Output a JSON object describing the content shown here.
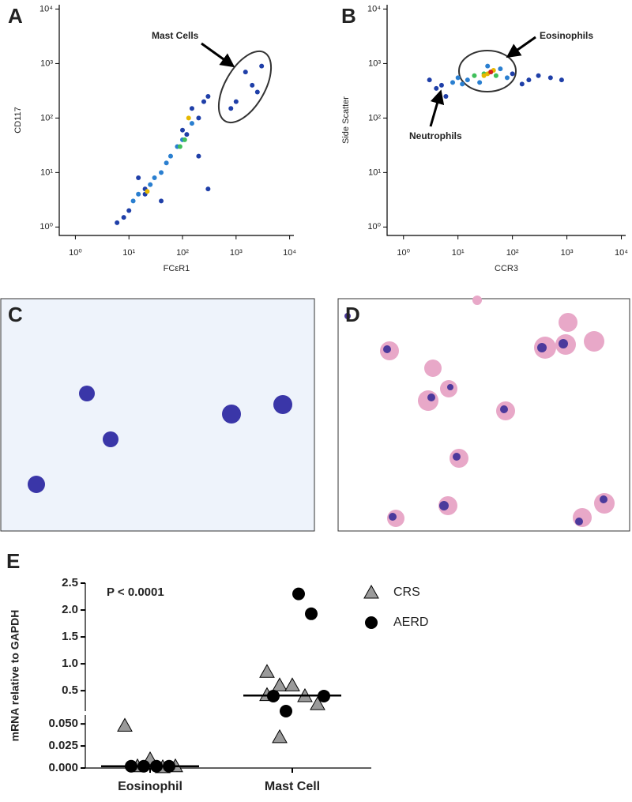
{
  "chart_data": [
    {
      "type": "scatter",
      "panel": "A",
      "xlabel": "FCεR1",
      "ylabel": "CD117",
      "xlog": true,
      "ylog": true,
      "xlim": [
        0.5,
        12000
      ],
      "ylim": [
        0.7,
        12000
      ],
      "xticks": [
        {
          "value": 1,
          "label": "10⁰"
        },
        {
          "value": 10,
          "label": "10¹"
        },
        {
          "value": 100,
          "label": "10²"
        },
        {
          "value": 1000,
          "label": "10³"
        },
        {
          "value": 10000,
          "label": "10⁴"
        }
      ],
      "yticks": [
        {
          "value": 1,
          "label": "10⁰"
        },
        {
          "value": 10,
          "label": "10¹"
        },
        {
          "value": 100,
          "label": "10²"
        },
        {
          "value": 1000,
          "label": "10³"
        },
        {
          "value": 10000,
          "label": "10⁴"
        }
      ],
      "annotation": "Mast Cells",
      "x": [
        6,
        8,
        10,
        12,
        15,
        20,
        25,
        20,
        30,
        40,
        50,
        60,
        80,
        100,
        120,
        150,
        100,
        200,
        150,
        250,
        300,
        200,
        300,
        1000,
        2000,
        1500,
        3000,
        800,
        2500,
        40,
        15,
        22,
        110,
        130,
        90
      ],
      "y": [
        1.2,
        1.5,
        2,
        3,
        4,
        5,
        6,
        4,
        8,
        10,
        15,
        20,
        30,
        40,
        50,
        80,
        60,
        100,
        150,
        200,
        250,
        20,
        5,
        200,
        400,
        700,
        900,
        150,
        300,
        3,
        8,
        4.5,
        40,
        100,
        30
      ],
      "colors": [
        "#1f3fa8",
        "#1f3fa8",
        "#1f3fa8",
        "#2a7fd0",
        "#2a7fd0",
        "#1f3fa8",
        "#2a7fd0",
        "#1f3fa8",
        "#2a7fd0",
        "#2a7fd0",
        "#2a7fd0",
        "#2a7fd0",
        "#2a7fd0",
        "#2a7fd0",
        "#1f3fa8",
        "#2a7fd0",
        "#1f3fa8",
        "#1f3fa8",
        "#1f3fa8",
        "#1f3fa8",
        "#1f3fa8",
        "#1f3fa8",
        "#1f3fa8",
        "#1f3fa8",
        "#1f3fa8",
        "#1f3fa8",
        "#1f3fa8",
        "#1f3fa8",
        "#1f3fa8",
        "#1f3fa8",
        "#1f3fa8",
        "#e6b800",
        "#3fbf5a",
        "#e6b800",
        "#3fbf5a"
      ]
    },
    {
      "type": "scatter",
      "panel": "B",
      "xlabel": "CCR3",
      "ylabel": "Side Scatter",
      "xlog": true,
      "ylog": true,
      "xlim": [
        0.5,
        12000
      ],
      "ylim": [
        0.7,
        12000
      ],
      "xticks": [
        {
          "value": 1,
          "label": "10⁰"
        },
        {
          "value": 10,
          "label": "10¹"
        },
        {
          "value": 100,
          "label": "10²"
        },
        {
          "value": 1000,
          "label": "10³"
        },
        {
          "value": 10000,
          "label": "10⁴"
        }
      ],
      "yticks": [
        {
          "value": 1,
          "label": "10⁰"
        },
        {
          "value": 10,
          "label": "10¹"
        },
        {
          "value": 100,
          "label": "10²"
        },
        {
          "value": 1000,
          "label": "10³"
        },
        {
          "value": 10000,
          "label": "10⁴"
        }
      ],
      "annotations": [
        "Eosinophils",
        "Neutrophils"
      ],
      "x": [
        3,
        5,
        8,
        10,
        15,
        20,
        30,
        40,
        50,
        60,
        80,
        100,
        200,
        300,
        500,
        800,
        6,
        25,
        35,
        45,
        35,
        40,
        30,
        4,
        12,
        150
      ],
      "y": [
        500,
        400,
        450,
        550,
        500,
        600,
        650,
        700,
        600,
        800,
        550,
        650,
        500,
        600,
        550,
        500,
        250,
        450,
        900,
        750,
        650,
        700,
        600,
        350,
        420,
        420
      ],
      "colors": [
        "#1f3fa8",
        "#1f3fa8",
        "#2a7fd0",
        "#2a7fd0",
        "#2a7fd0",
        "#3fbf5a",
        "#3fbf5a",
        "#3fbf5a",
        "#3fbf5a",
        "#2a7fd0",
        "#2a7fd0",
        "#1f3fa8",
        "#1f3fa8",
        "#1f3fa8",
        "#1f3fa8",
        "#1f3fa8",
        "#1f3fa8",
        "#2a7fd0",
        "#2a7fd0",
        "#e6b800",
        "#e6b800",
        "#d62020",
        "#e6b800",
        "#1f3fa8",
        "#2a7fd0",
        "#1f3fa8"
      ]
    },
    {
      "type": "dotplot",
      "panel": "E",
      "ylabel": "mRNA relative to GAPDH",
      "annotation": "P < 0.0001",
      "categories": [
        "Eosinophil",
        "Mast Cell"
      ],
      "segments": [
        {
          "ylim": [
            0,
            0.06
          ],
          "yticks": [
            {
              "value": 0,
              "label": "0.000"
            },
            0.025,
            {
              "value": 0.05,
              "label": "0.050"
            }
          ]
        },
        {
          "ylim": [
            0.12,
            2.5
          ],
          "yticks": [
            0.5,
            {
              "value": 1,
              "label": "1.0"
            },
            1.5,
            {
              "value": 2,
              "label": "2.0"
            },
            2.5
          ]
        }
      ],
      "series": [
        {
          "name": "CRS",
          "marker": "triangle",
          "color": "#9a9a9a",
          "values": [
            [
              0.048,
              0.002,
              0.01,
              0.001,
              0.002
            ],
            [
              0.85,
              0.6,
              0.6,
              0.4,
              0.25,
              0.42,
              0.035
            ]
          ]
        },
        {
          "name": "AERD",
          "marker": "circle",
          "color": "#000000",
          "values": [
            [
              0.002,
              0.002,
              0.002,
              0.002
            ],
            [
              2.3,
              1.93,
              0.4,
              0.4,
              0.12
            ]
          ]
        }
      ],
      "medians": [
        0.002,
        0.41
      ]
    }
  ],
  "images": [
    {
      "panel": "C"
    },
    {
      "panel": "D"
    }
  ]
}
